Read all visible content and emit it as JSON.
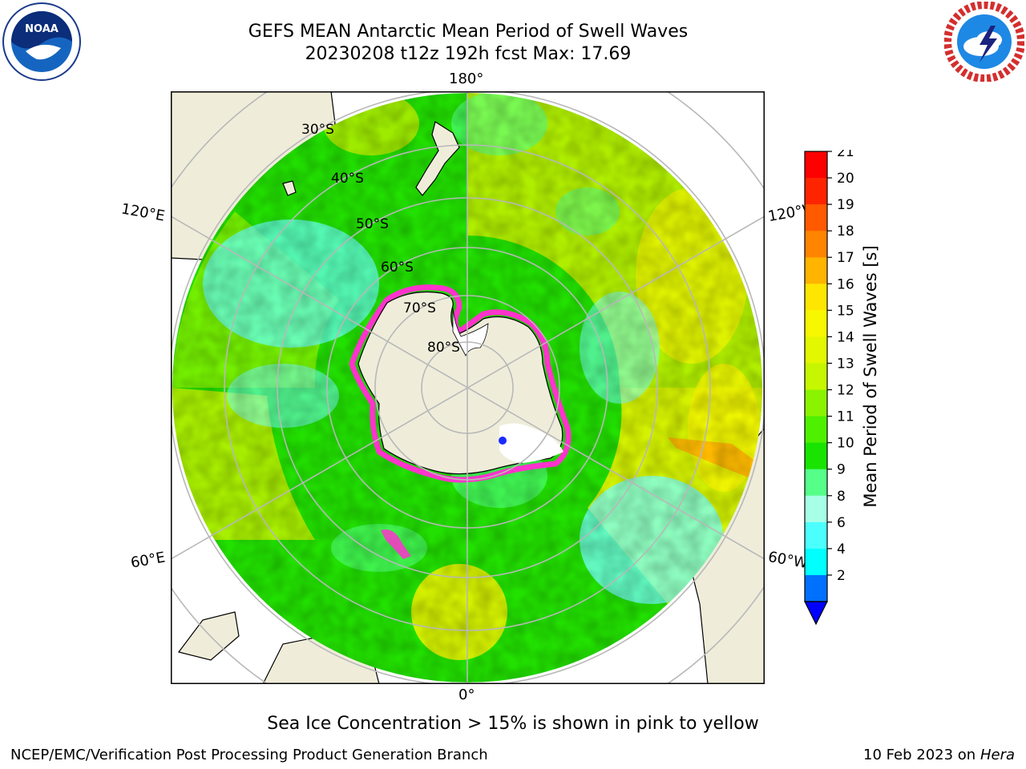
{
  "header": {
    "title_line1": "GEFS MEAN Antarctic Mean Period of Swell Waves",
    "title_line2": "20230208 t12z 192h fcst   Max: 17.69"
  },
  "logos": {
    "left": "noaa-logo",
    "right": "national-weather-service-logo"
  },
  "map": {
    "projection": "south-polar-stereographic",
    "longitude_labels": {
      "top": "180°",
      "bottom": "0°",
      "upper_left": "120°E",
      "lower_left": "60°E",
      "upper_right": "120°W",
      "lower_right": "60°W"
    },
    "latitude_labels": [
      "30°S",
      "40°S",
      "50°S",
      "60°S",
      "70°S",
      "80°S"
    ],
    "colors": {
      "land": "#efedda",
      "grid": "#b8b8b8",
      "ocean_green": "#22e000",
      "ocean_light_green": "#66f000",
      "ocean_yellow_green": "#c0f000",
      "ocean_yellow": "#f2f200",
      "ocean_mint": "#55ff88",
      "ocean_cyan": "#77ffff",
      "sea_ice_edge": "#ff33cc"
    }
  },
  "colorbar": {
    "label": "Mean Period of Swell Waves [s]",
    "ticks": [
      "21",
      "20",
      "19",
      "18",
      "17",
      "16",
      "15",
      "14",
      "13",
      "12",
      "11",
      "10",
      "9",
      "8",
      "6",
      "4",
      "2"
    ],
    "colors": [
      "#ff0000",
      "#ff2400",
      "#ff5a00",
      "#ff8400",
      "#ffb400",
      "#ffe600",
      "#f7f700",
      "#e2f700",
      "#c6f700",
      "#8af300",
      "#4ef000",
      "#18e400",
      "#55ff88",
      "#a6ffe6",
      "#4cffff",
      "#00ffff",
      "#0070ff"
    ],
    "extend_color": "#0000ff"
  },
  "footer": {
    "note": "Sea Ice Concentration > 15% is shown in pink to yellow",
    "credit_left": "NCEP/EMC/Verification Post Processing Product Generation Branch",
    "credit_date": "10 Feb 2023 on",
    "credit_host": "Hera"
  }
}
